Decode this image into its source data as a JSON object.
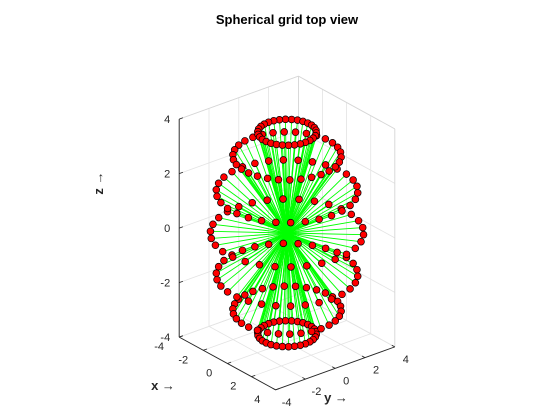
{
  "chart_data": {
    "type": "stem3",
    "title": "Spherical grid top view",
    "xlabel": "x →",
    "ylabel": "y →",
    "zlabel": "z →",
    "xlim": [
      -4,
      4
    ],
    "ylim": [
      -4,
      4
    ],
    "zlim": [
      -4,
      4
    ],
    "x_ticks": [
      -4,
      -2,
      0,
      2,
      4
    ],
    "y_ticks": [
      -4,
      -2,
      0,
      2,
      4
    ],
    "z_ticks": [
      -4,
      -2,
      0,
      2,
      4
    ],
    "grid": true,
    "view": {
      "azimuth": -37.5,
      "elevation": 30
    },
    "stem_origin": [
      0,
      0,
      0
    ],
    "series": [
      {
        "stem_color": "#00ff00",
        "marker_face_color": "#ff0000",
        "marker_edge_color": "#000000",
        "marker": "circle",
        "grid": {
          "type": "sphere",
          "radius": 4,
          "polar_angles_deg": [
            22.5,
            45,
            67.5,
            90,
            112.5,
            135,
            157.5
          ],
          "azimuth_angles_deg": [
            0,
            12,
            24,
            36,
            48,
            60,
            72,
            84,
            96,
            108,
            120,
            132,
            144,
            156,
            168,
            180,
            192,
            204,
            216,
            228,
            240,
            252,
            264,
            276,
            288,
            300,
            312,
            324,
            336,
            348
          ]
        }
      }
    ]
  }
}
